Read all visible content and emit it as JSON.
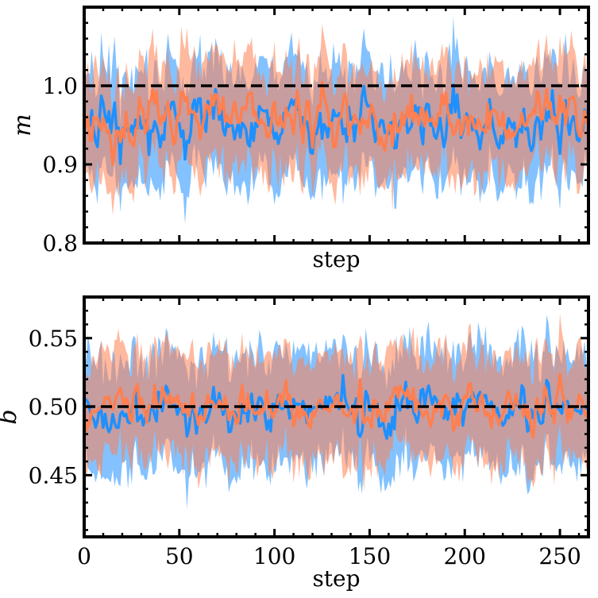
{
  "chart_data": [
    {
      "type": "line",
      "xlabel": "step",
      "ylabel": "m",
      "xlim": [
        0,
        265
      ],
      "ylim": [
        0.8,
        1.1
      ],
      "x_ticks": [
        0,
        50,
        100,
        150,
        200,
        250
      ],
      "x_tick_labels_visible": false,
      "y_ticks": [
        0.8,
        0.9,
        1.0
      ],
      "y_tick_labels": [
        "0.8",
        "0.9",
        "1.0"
      ],
      "reference_line": {
        "value": 1.0,
        "style": "dashed",
        "color": "#000000"
      },
      "grid": false,
      "legend": "none",
      "series": [
        {
          "color": "#1e90ff",
          "band_color": "#1e90ff",
          "mean_level": 0.95,
          "mean_spread": 0.02,
          "band_halfwidth": 0.075
        },
        {
          "color": "#ff7f50",
          "band_color": "#ff7f50",
          "mean_level": 0.955,
          "mean_spread": 0.02,
          "band_halfwidth": 0.072
        }
      ]
    },
    {
      "type": "line",
      "xlabel": "step",
      "ylabel": "b",
      "xlim": [
        0,
        265
      ],
      "ylim": [
        0.405,
        0.58
      ],
      "x_ticks": [
        0,
        50,
        100,
        150,
        200,
        250
      ],
      "x_tick_labels": [
        "0",
        "50",
        "100",
        "150",
        "200",
        "250"
      ],
      "y_ticks": [
        0.45,
        0.5,
        0.55
      ],
      "y_tick_labels": [
        "0.45",
        "0.50",
        "0.55"
      ],
      "reference_line": {
        "value": 0.5,
        "style": "dashed",
        "color": "#000000"
      },
      "grid": false,
      "legend": "none",
      "series": [
        {
          "color": "#1e90ff",
          "band_color": "#1e90ff",
          "mean_level": 0.498,
          "mean_spread": 0.01,
          "band_halfwidth": 0.043
        },
        {
          "color": "#ff7f50",
          "band_color": "#ff7f50",
          "mean_level": 0.5,
          "mean_spread": 0.009,
          "band_halfwidth": 0.041
        }
      ]
    }
  ]
}
